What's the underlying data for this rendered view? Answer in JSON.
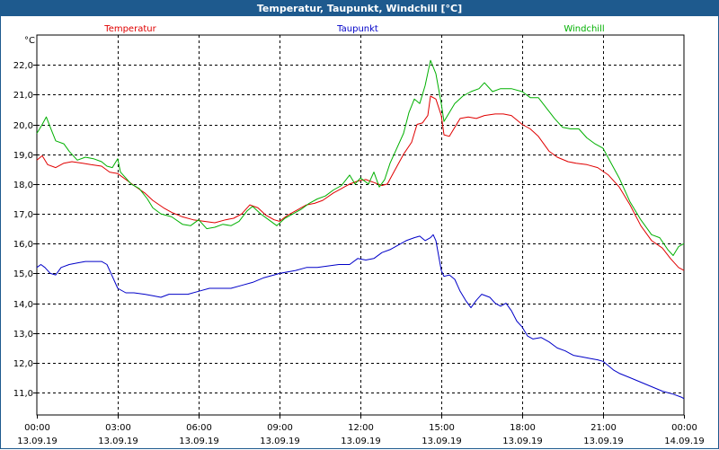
{
  "window": {
    "title": "Temperatur, Taupunkt, Windchill [°C]"
  },
  "chart_data": {
    "type": "line",
    "title": "Temperatur, Taupunkt, Windchill [°C]",
    "ylabel": "°C",
    "ylim": [
      10.25,
      23.0
    ],
    "y_ticks": [
      11.0,
      12.0,
      13.0,
      14.0,
      15.0,
      16.0,
      17.0,
      18.0,
      19.0,
      20.0,
      21.0,
      22.0
    ],
    "y_tick_labels": [
      "11,0",
      "12,0",
      "13,0",
      "14,0",
      "15,0",
      "16,0",
      "17,0",
      "18,0",
      "19,0",
      "20,0",
      "21,0",
      "22,0"
    ],
    "xlim": [
      0,
      24
    ],
    "x_ticks": [
      0,
      3,
      6,
      9,
      12,
      15,
      18,
      21,
      24
    ],
    "x_tick_labels": [
      {
        "time": "00:00",
        "date": "13.09.19"
      },
      {
        "time": "03:00",
        "date": "13.09.19"
      },
      {
        "time": "06:00",
        "date": "13.09.19"
      },
      {
        "time": "09:00",
        "date": "13.09.19"
      },
      {
        "time": "12:00",
        "date": "13.09.19"
      },
      {
        "time": "15:00",
        "date": "13.09.19"
      },
      {
        "time": "18:00",
        "date": "13.09.19"
      },
      {
        "time": "21:00",
        "date": "13.09.19"
      },
      {
        "time": "00:00",
        "date": "14.09.19"
      }
    ],
    "grid": true,
    "x_unit": "hours since 13.09.19 00:00",
    "series": [
      {
        "name": "Temperatur",
        "color": "#e00000",
        "points": [
          [
            0,
            18.8
          ],
          [
            0.2,
            18.95
          ],
          [
            0.4,
            18.65
          ],
          [
            0.7,
            18.55
          ],
          [
            1.0,
            18.7
          ],
          [
            1.3,
            18.75
          ],
          [
            1.7,
            18.7
          ],
          [
            2.0,
            18.65
          ],
          [
            2.4,
            18.6
          ],
          [
            2.7,
            18.4
          ],
          [
            3.0,
            18.35
          ],
          [
            3.3,
            18.15
          ],
          [
            3.6,
            17.95
          ],
          [
            4.0,
            17.7
          ],
          [
            4.3,
            17.45
          ],
          [
            4.7,
            17.2
          ],
          [
            5.0,
            17.05
          ],
          [
            5.4,
            16.9
          ],
          [
            5.8,
            16.8
          ],
          [
            6.2,
            16.75
          ],
          [
            6.6,
            16.7
          ],
          [
            7.0,
            16.8
          ],
          [
            7.3,
            16.85
          ],
          [
            7.6,
            17.0
          ],
          [
            7.9,
            17.3
          ],
          [
            8.2,
            17.2
          ],
          [
            8.5,
            16.95
          ],
          [
            8.8,
            16.8
          ],
          [
            9.0,
            16.75
          ],
          [
            9.3,
            16.95
          ],
          [
            9.7,
            17.15
          ],
          [
            10.0,
            17.3
          ],
          [
            10.3,
            17.35
          ],
          [
            10.6,
            17.45
          ],
          [
            11.0,
            17.7
          ],
          [
            11.3,
            17.85
          ],
          [
            11.6,
            18.0
          ],
          [
            11.9,
            18.1
          ],
          [
            12.2,
            18.15
          ],
          [
            12.5,
            18.05
          ],
          [
            12.8,
            17.95
          ],
          [
            13.0,
            18.0
          ],
          [
            13.3,
            18.5
          ],
          [
            13.6,
            19.0
          ],
          [
            13.9,
            19.4
          ],
          [
            14.1,
            20.0
          ],
          [
            14.3,
            20.05
          ],
          [
            14.5,
            20.3
          ],
          [
            14.6,
            20.95
          ],
          [
            14.8,
            20.85
          ],
          [
            15.0,
            20.3
          ],
          [
            15.1,
            19.65
          ],
          [
            15.3,
            19.6
          ],
          [
            15.5,
            19.9
          ],
          [
            15.7,
            20.2
          ],
          [
            16.0,
            20.25
          ],
          [
            16.3,
            20.2
          ],
          [
            16.6,
            20.3
          ],
          [
            17.0,
            20.35
          ],
          [
            17.3,
            20.35
          ],
          [
            17.6,
            20.3
          ],
          [
            18.0,
            20.0
          ],
          [
            18.3,
            19.85
          ],
          [
            18.6,
            19.6
          ],
          [
            19.0,
            19.1
          ],
          [
            19.3,
            18.9
          ],
          [
            19.7,
            18.75
          ],
          [
            20.0,
            18.7
          ],
          [
            20.4,
            18.65
          ],
          [
            20.8,
            18.55
          ],
          [
            21.2,
            18.3
          ],
          [
            21.6,
            17.9
          ],
          [
            22.0,
            17.3
          ],
          [
            22.4,
            16.6
          ],
          [
            22.8,
            16.1
          ],
          [
            23.2,
            15.85
          ],
          [
            23.5,
            15.5
          ],
          [
            23.8,
            15.2
          ],
          [
            24.0,
            15.1
          ]
        ]
      },
      {
        "name": "Taupunkt",
        "color": "#0000c8",
        "points": [
          [
            0,
            15.2
          ],
          [
            0.15,
            15.3
          ],
          [
            0.3,
            15.2
          ],
          [
            0.5,
            15.0
          ],
          [
            0.7,
            14.95
          ],
          [
            0.9,
            15.2
          ],
          [
            1.2,
            15.3
          ],
          [
            1.5,
            15.35
          ],
          [
            1.8,
            15.4
          ],
          [
            2.1,
            15.4
          ],
          [
            2.4,
            15.4
          ],
          [
            2.6,
            15.3
          ],
          [
            2.8,
            14.9
          ],
          [
            3.0,
            14.5
          ],
          [
            3.3,
            14.35
          ],
          [
            3.6,
            14.35
          ],
          [
            4.0,
            14.3
          ],
          [
            4.3,
            14.25
          ],
          [
            4.6,
            14.2
          ],
          [
            4.9,
            14.3
          ],
          [
            5.2,
            14.3
          ],
          [
            5.6,
            14.3
          ],
          [
            6.0,
            14.4
          ],
          [
            6.4,
            14.5
          ],
          [
            6.8,
            14.5
          ],
          [
            7.2,
            14.5
          ],
          [
            7.6,
            14.6
          ],
          [
            8.0,
            14.7
          ],
          [
            8.4,
            14.85
          ],
          [
            8.8,
            14.95
          ],
          [
            9.0,
            15.0
          ],
          [
            9.3,
            15.05
          ],
          [
            9.6,
            15.1
          ],
          [
            10.0,
            15.2
          ],
          [
            10.4,
            15.2
          ],
          [
            10.8,
            15.25
          ],
          [
            11.2,
            15.3
          ],
          [
            11.6,
            15.3
          ],
          [
            11.9,
            15.5
          ],
          [
            12.2,
            15.45
          ],
          [
            12.5,
            15.5
          ],
          [
            12.8,
            15.7
          ],
          [
            13.1,
            15.8
          ],
          [
            13.4,
            15.95
          ],
          [
            13.7,
            16.1
          ],
          [
            14.0,
            16.2
          ],
          [
            14.2,
            16.25
          ],
          [
            14.4,
            16.1
          ],
          [
            14.6,
            16.2
          ],
          [
            14.7,
            16.3
          ],
          [
            14.8,
            16.1
          ],
          [
            14.9,
            15.6
          ],
          [
            15.0,
            15.1
          ],
          [
            15.1,
            14.9
          ],
          [
            15.3,
            14.95
          ],
          [
            15.5,
            14.8
          ],
          [
            15.7,
            14.4
          ],
          [
            15.9,
            14.1
          ],
          [
            16.1,
            13.85
          ],
          [
            16.3,
            14.1
          ],
          [
            16.5,
            14.3
          ],
          [
            16.8,
            14.2
          ],
          [
            17.0,
            14.0
          ],
          [
            17.2,
            13.9
          ],
          [
            17.4,
            14.0
          ],
          [
            17.6,
            13.75
          ],
          [
            17.8,
            13.4
          ],
          [
            18.0,
            13.2
          ],
          [
            18.2,
            12.9
          ],
          [
            18.4,
            12.8
          ],
          [
            18.7,
            12.85
          ],
          [
            19.0,
            12.7
          ],
          [
            19.3,
            12.5
          ],
          [
            19.6,
            12.4
          ],
          [
            19.9,
            12.25
          ],
          [
            20.2,
            12.2
          ],
          [
            20.5,
            12.15
          ],
          [
            20.8,
            12.1
          ],
          [
            21.0,
            12.05
          ],
          [
            21.2,
            11.9
          ],
          [
            21.4,
            11.75
          ],
          [
            21.6,
            11.65
          ],
          [
            22.0,
            11.5
          ],
          [
            22.4,
            11.35
          ],
          [
            22.8,
            11.2
          ],
          [
            23.2,
            11.05
          ],
          [
            23.6,
            10.95
          ],
          [
            23.9,
            10.85
          ],
          [
            24.0,
            10.8
          ]
        ]
      },
      {
        "name": "Windchill",
        "color": "#00b000",
        "points": [
          [
            0,
            19.7
          ],
          [
            0.2,
            20.0
          ],
          [
            0.35,
            20.25
          ],
          [
            0.5,
            19.9
          ],
          [
            0.7,
            19.45
          ],
          [
            1.0,
            19.35
          ],
          [
            1.2,
            19.1
          ],
          [
            1.5,
            18.8
          ],
          [
            1.8,
            18.9
          ],
          [
            2.1,
            18.85
          ],
          [
            2.4,
            18.75
          ],
          [
            2.6,
            18.6
          ],
          [
            2.8,
            18.55
          ],
          [
            3.0,
            18.85
          ],
          [
            3.1,
            18.4
          ],
          [
            3.3,
            18.2
          ],
          [
            3.5,
            18.0
          ],
          [
            3.8,
            17.85
          ],
          [
            4.1,
            17.5
          ],
          [
            4.3,
            17.2
          ],
          [
            4.6,
            17.0
          ],
          [
            5.0,
            16.9
          ],
          [
            5.4,
            16.65
          ],
          [
            5.7,
            16.6
          ],
          [
            6.0,
            16.8
          ],
          [
            6.3,
            16.5
          ],
          [
            6.6,
            16.55
          ],
          [
            6.9,
            16.65
          ],
          [
            7.2,
            16.6
          ],
          [
            7.5,
            16.75
          ],
          [
            7.8,
            17.1
          ],
          [
            8.0,
            17.25
          ],
          [
            8.3,
            17.0
          ],
          [
            8.6,
            16.8
          ],
          [
            8.9,
            16.6
          ],
          [
            9.2,
            16.85
          ],
          [
            9.5,
            17.0
          ],
          [
            9.8,
            17.15
          ],
          [
            10.1,
            17.35
          ],
          [
            10.4,
            17.5
          ],
          [
            10.7,
            17.6
          ],
          [
            11.0,
            17.8
          ],
          [
            11.3,
            17.95
          ],
          [
            11.6,
            18.3
          ],
          [
            11.8,
            18.0
          ],
          [
            12.0,
            18.2
          ],
          [
            12.3,
            18.0
          ],
          [
            12.5,
            18.4
          ],
          [
            12.7,
            17.9
          ],
          [
            12.9,
            18.15
          ],
          [
            13.1,
            18.7
          ],
          [
            13.3,
            19.1
          ],
          [
            13.6,
            19.7
          ],
          [
            13.8,
            20.4
          ],
          [
            14.0,
            20.85
          ],
          [
            14.2,
            20.7
          ],
          [
            14.4,
            21.3
          ],
          [
            14.6,
            22.15
          ],
          [
            14.8,
            21.7
          ],
          [
            15.0,
            20.7
          ],
          [
            15.1,
            20.1
          ],
          [
            15.3,
            20.4
          ],
          [
            15.5,
            20.7
          ],
          [
            15.8,
            20.95
          ],
          [
            16.1,
            21.1
          ],
          [
            16.4,
            21.2
          ],
          [
            16.6,
            21.4
          ],
          [
            16.9,
            21.1
          ],
          [
            17.2,
            21.2
          ],
          [
            17.6,
            21.2
          ],
          [
            18.0,
            21.1
          ],
          [
            18.3,
            20.9
          ],
          [
            18.6,
            20.9
          ],
          [
            18.9,
            20.55
          ],
          [
            19.2,
            20.2
          ],
          [
            19.5,
            19.9
          ],
          [
            19.8,
            19.85
          ],
          [
            20.1,
            19.85
          ],
          [
            20.4,
            19.55
          ],
          [
            20.7,
            19.35
          ],
          [
            21.0,
            19.2
          ],
          [
            21.3,
            18.7
          ],
          [
            21.6,
            18.2
          ],
          [
            22.0,
            17.4
          ],
          [
            22.4,
            16.8
          ],
          [
            22.8,
            16.3
          ],
          [
            23.1,
            16.2
          ],
          [
            23.4,
            15.8
          ],
          [
            23.6,
            15.6
          ],
          [
            23.8,
            15.9
          ],
          [
            24.0,
            16.0
          ]
        ]
      }
    ]
  }
}
